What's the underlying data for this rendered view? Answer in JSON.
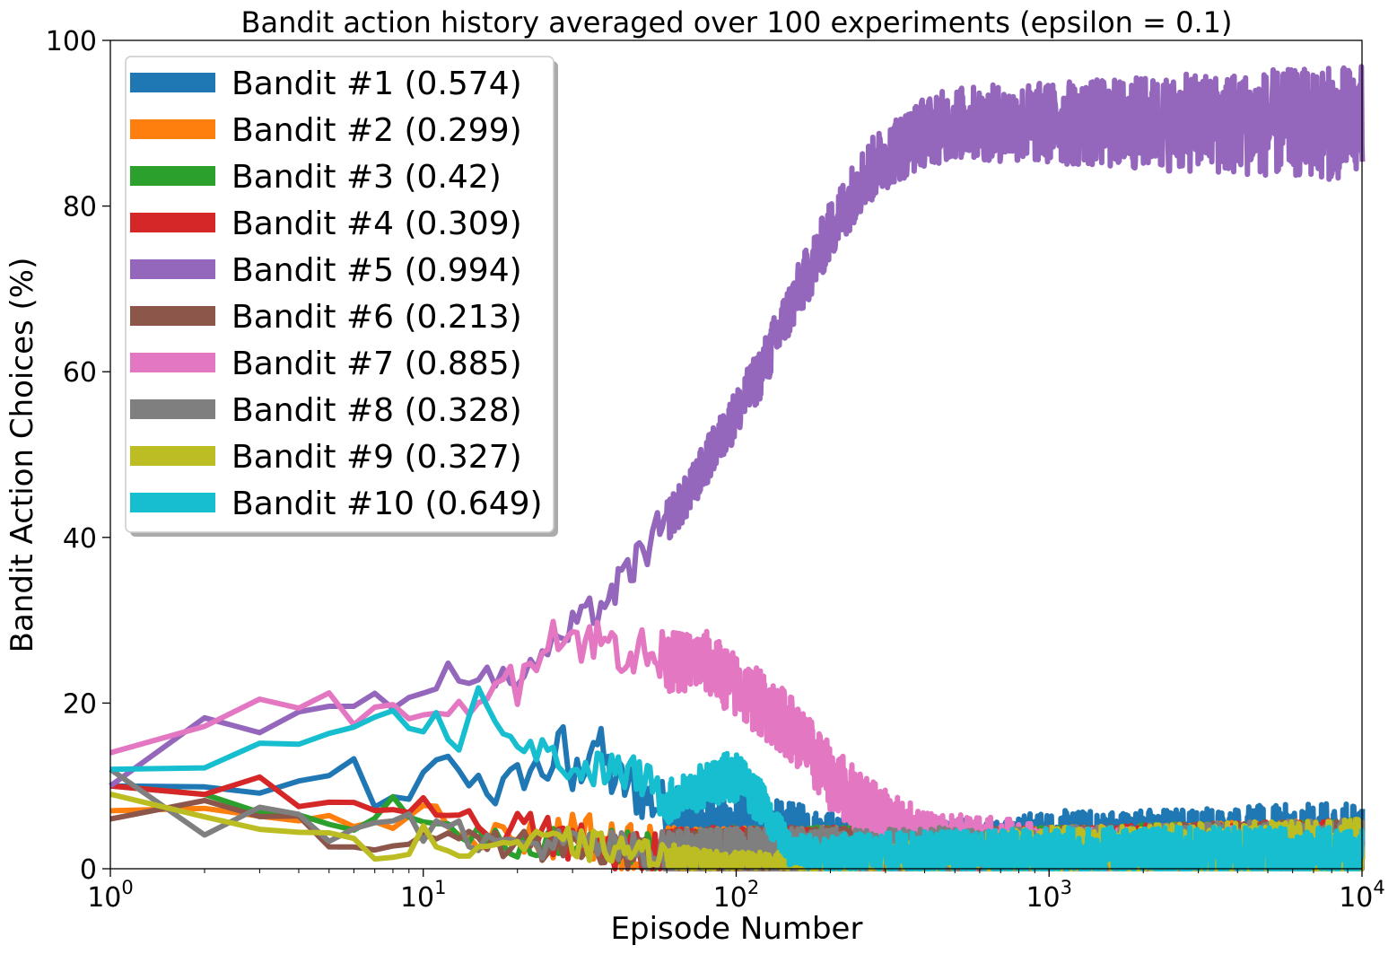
{
  "chart_data": {
    "type": "line",
    "title": "Bandit action history averaged over 100 experiments (epsilon = 0.1)",
    "xlabel": "Episode Number",
    "ylabel": "Bandit Action Choices (%)",
    "xscale": "log",
    "xlim": [
      1,
      10000
    ],
    "ylim": [
      0,
      100
    ],
    "xticks": [
      {
        "value": 1,
        "base": "10",
        "exp": "0"
      },
      {
        "value": 10,
        "base": "10",
        "exp": "1"
      },
      {
        "value": 100,
        "base": "10",
        "exp": "2"
      },
      {
        "value": 1000,
        "base": "10",
        "exp": "3"
      },
      {
        "value": 10000,
        "base": "10",
        "exp": "4"
      }
    ],
    "yticks": [
      "0",
      "20",
      "40",
      "60",
      "80",
      "100"
    ],
    "grid": false,
    "legend_position": "top-left",
    "series": [
      {
        "name": "Bandit #1 (0.574)",
        "color": "#1f77b4",
        "points": [
          [
            1,
            10
          ],
          [
            2,
            10
          ],
          [
            3,
            9
          ],
          [
            4,
            10
          ],
          [
            5,
            11
          ],
          [
            6,
            13
          ],
          [
            7,
            8
          ],
          [
            9,
            8
          ],
          [
            10,
            11
          ],
          [
            12,
            14
          ],
          [
            13,
            11
          ],
          [
            15,
            11
          ],
          [
            17,
            9
          ],
          [
            20,
            11
          ],
          [
            22,
            12
          ],
          [
            25,
            12
          ],
          [
            28,
            15
          ],
          [
            30,
            10
          ],
          [
            35,
            16
          ],
          [
            40,
            11
          ],
          [
            50,
            9
          ],
          [
            60,
            7
          ],
          [
            80,
            5
          ],
          [
            100,
            5
          ],
          [
            150,
            4
          ],
          [
            200,
            3
          ],
          [
            500,
            2
          ],
          [
            1000,
            3
          ],
          [
            3000,
            3
          ],
          [
            10000,
            3
          ]
        ],
        "spread": [
          [
            1,
            0
          ],
          [
            10,
            1
          ],
          [
            30,
            3
          ],
          [
            100,
            4
          ],
          [
            1000,
            4
          ],
          [
            10000,
            5
          ]
        ]
      },
      {
        "name": "Bandit #2 (0.299)",
        "color": "#ff7f0e",
        "points": [
          [
            1,
            7
          ],
          [
            2,
            7
          ],
          [
            3,
            6
          ],
          [
            5,
            6
          ],
          [
            8,
            5
          ],
          [
            10,
            8
          ],
          [
            12,
            6
          ],
          [
            15,
            4
          ],
          [
            20,
            4
          ],
          [
            25,
            3
          ],
          [
            30,
            5
          ],
          [
            40,
            3
          ],
          [
            60,
            2
          ],
          [
            100,
            2
          ],
          [
            200,
            2
          ],
          [
            1000,
            2
          ],
          [
            10000,
            2
          ]
        ],
        "spread": [
          [
            1,
            0
          ],
          [
            10,
            1
          ],
          [
            30,
            3
          ],
          [
            100,
            3
          ],
          [
            1000,
            3
          ],
          [
            10000,
            4
          ]
        ]
      },
      {
        "name": "Bandit #3 (0.42)",
        "color": "#2ca02c",
        "points": [
          [
            1,
            10
          ],
          [
            2,
            9
          ],
          [
            3,
            7
          ],
          [
            4,
            6
          ],
          [
            5,
            6
          ],
          [
            6,
            5
          ],
          [
            8,
            8
          ],
          [
            10,
            6
          ],
          [
            15,
            4
          ],
          [
            20,
            3
          ],
          [
            30,
            3
          ],
          [
            50,
            2
          ],
          [
            100,
            2
          ],
          [
            200,
            2
          ],
          [
            1000,
            2
          ],
          [
            10000,
            2
          ]
        ],
        "spread": [
          [
            1,
            0
          ],
          [
            10,
            1
          ],
          [
            30,
            2
          ],
          [
            100,
            3
          ],
          [
            1000,
            3
          ],
          [
            10000,
            4
          ]
        ]
      },
      {
        "name": "Bandit #4 (0.309)",
        "color": "#d62728",
        "points": [
          [
            1,
            10
          ],
          [
            2,
            9
          ],
          [
            3,
            11
          ],
          [
            4,
            8
          ],
          [
            6,
            8
          ],
          [
            8,
            7
          ],
          [
            10,
            8
          ],
          [
            12,
            7
          ],
          [
            15,
            5
          ],
          [
            20,
            5
          ],
          [
            30,
            3
          ],
          [
            50,
            2
          ],
          [
            100,
            2
          ],
          [
            300,
            2
          ],
          [
            1000,
            2
          ],
          [
            10000,
            2
          ]
        ],
        "spread": [
          [
            1,
            0
          ],
          [
            10,
            1
          ],
          [
            30,
            3
          ],
          [
            100,
            3
          ],
          [
            1000,
            3
          ],
          [
            10000,
            4
          ]
        ]
      },
      {
        "name": "Bandit #5 (0.994)",
        "color": "#9467bd",
        "points": [
          [
            1,
            10
          ],
          [
            2,
            18
          ],
          [
            3,
            16
          ],
          [
            4,
            19
          ],
          [
            5,
            20
          ],
          [
            6,
            19
          ],
          [
            7,
            22
          ],
          [
            8,
            20
          ],
          [
            9,
            21
          ],
          [
            10,
            21
          ],
          [
            12,
            24
          ],
          [
            15,
            23
          ],
          [
            20,
            23
          ],
          [
            30,
            29
          ],
          [
            40,
            33
          ],
          [
            50,
            38
          ],
          [
            60,
            42
          ],
          [
            70,
            45
          ],
          [
            80,
            49
          ],
          [
            100,
            55
          ],
          [
            120,
            60
          ],
          [
            150,
            68
          ],
          [
            200,
            77
          ],
          [
            250,
            83
          ],
          [
            300,
            86
          ],
          [
            400,
            89
          ],
          [
            500,
            90
          ],
          [
            700,
            90
          ],
          [
            1000,
            90
          ],
          [
            2000,
            90
          ],
          [
            5000,
            90
          ],
          [
            10000,
            90
          ]
        ],
        "spread": [
          [
            1,
            0
          ],
          [
            10,
            1
          ],
          [
            30,
            2
          ],
          [
            100,
            3
          ],
          [
            300,
            4
          ],
          [
            1000,
            5
          ],
          [
            3000,
            6
          ],
          [
            10000,
            7
          ]
        ]
      },
      {
        "name": "Bandit #6 (0.213)",
        "color": "#8c564b",
        "points": [
          [
            1,
            6
          ],
          [
            2,
            8
          ],
          [
            3,
            6
          ],
          [
            4,
            6
          ],
          [
            5,
            3
          ],
          [
            7,
            3
          ],
          [
            9,
            3
          ],
          [
            10,
            5
          ],
          [
            15,
            3
          ],
          [
            20,
            3
          ],
          [
            30,
            2
          ],
          [
            50,
            2
          ],
          [
            100,
            2
          ],
          [
            1000,
            2
          ],
          [
            10000,
            2
          ]
        ],
        "spread": [
          [
            1,
            0
          ],
          [
            10,
            1
          ],
          [
            30,
            2
          ],
          [
            100,
            3
          ],
          [
            1000,
            3
          ],
          [
            10000,
            4
          ]
        ]
      },
      {
        "name": "Bandit #7 (0.885)",
        "color": "#e377c2",
        "points": [
          [
            1,
            14
          ],
          [
            2,
            17
          ],
          [
            3,
            20
          ],
          [
            4,
            19
          ],
          [
            5,
            21
          ],
          [
            6,
            18
          ],
          [
            7,
            20
          ],
          [
            8,
            19
          ],
          [
            9,
            19
          ],
          [
            10,
            18
          ],
          [
            12,
            18
          ],
          [
            15,
            21
          ],
          [
            18,
            23
          ],
          [
            20,
            22
          ],
          [
            25,
            29
          ],
          [
            30,
            28
          ],
          [
            40,
            27
          ],
          [
            50,
            26
          ],
          [
            60,
            25
          ],
          [
            80,
            25
          ],
          [
            100,
            22
          ],
          [
            120,
            20
          ],
          [
            150,
            17
          ],
          [
            200,
            11
          ],
          [
            250,
            8
          ],
          [
            300,
            6
          ],
          [
            400,
            3
          ],
          [
            500,
            3
          ],
          [
            700,
            3
          ],
          [
            1000,
            2
          ],
          [
            10000,
            2
          ]
        ],
        "spread": [
          [
            1,
            0
          ],
          [
            10,
            1
          ],
          [
            30,
            3
          ],
          [
            100,
            4
          ],
          [
            300,
            4
          ],
          [
            1000,
            3
          ],
          [
            10000,
            3
          ]
        ]
      },
      {
        "name": "Bandit #8 (0.328)",
        "color": "#7f7f7f",
        "points": [
          [
            1,
            12
          ],
          [
            2,
            4
          ],
          [
            3,
            7
          ],
          [
            4,
            6
          ],
          [
            5,
            4
          ],
          [
            7,
            6
          ],
          [
            9,
            7
          ],
          [
            10,
            4
          ],
          [
            12,
            6
          ],
          [
            15,
            3
          ],
          [
            20,
            3
          ],
          [
            30,
            3
          ],
          [
            50,
            2
          ],
          [
            100,
            2
          ],
          [
            300,
            2
          ],
          [
            1000,
            2
          ],
          [
            10000,
            2
          ]
        ],
        "spread": [
          [
            1,
            0
          ],
          [
            10,
            1
          ],
          [
            30,
            2
          ],
          [
            100,
            3
          ],
          [
            1000,
            3
          ],
          [
            10000,
            4
          ]
        ]
      },
      {
        "name": "Bandit #9 (0.327)",
        "color": "#bcbd22",
        "points": [
          [
            1,
            9
          ],
          [
            2,
            6
          ],
          [
            3,
            5
          ],
          [
            4,
            5
          ],
          [
            5,
            4
          ],
          [
            6,
            3
          ],
          [
            7,
            2
          ],
          [
            9,
            2
          ],
          [
            10,
            5
          ],
          [
            12,
            1
          ],
          [
            15,
            3
          ],
          [
            20,
            3
          ],
          [
            30,
            3
          ],
          [
            50,
            2
          ],
          [
            80,
            1
          ],
          [
            100,
            1
          ],
          [
            150,
            1
          ],
          [
            200,
            0.5
          ],
          [
            500,
            2
          ],
          [
            1000,
            2
          ],
          [
            10000,
            2
          ]
        ],
        "spread": [
          [
            1,
            0
          ],
          [
            10,
            1
          ],
          [
            30,
            2
          ],
          [
            100,
            1
          ],
          [
            200,
            1
          ],
          [
            1000,
            3
          ],
          [
            10000,
            4
          ]
        ]
      },
      {
        "name": "Bandit #10 (0.649)",
        "color": "#17becf",
        "points": [
          [
            1,
            12
          ],
          [
            2,
            12
          ],
          [
            3,
            15
          ],
          [
            4,
            15
          ],
          [
            5,
            17
          ],
          [
            6,
            17
          ],
          [
            8,
            19
          ],
          [
            9,
            17
          ],
          [
            10,
            16
          ],
          [
            11,
            18
          ],
          [
            13,
            15
          ],
          [
            15,
            23
          ],
          [
            18,
            16
          ],
          [
            20,
            16
          ],
          [
            25,
            14
          ],
          [
            30,
            12
          ],
          [
            40,
            12
          ],
          [
            50,
            11
          ],
          [
            60,
            8
          ],
          [
            70,
            9
          ],
          [
            80,
            10
          ],
          [
            90,
            11
          ],
          [
            100,
            11
          ],
          [
            120,
            8
          ],
          [
            150,
            2
          ],
          [
            200,
            2
          ],
          [
            500,
            2
          ],
          [
            1000,
            2
          ],
          [
            3000,
            2
          ],
          [
            10000,
            2
          ]
        ],
        "spread": [
          [
            1,
            0
          ],
          [
            10,
            1
          ],
          [
            30,
            2
          ],
          [
            100,
            3
          ],
          [
            150,
            2
          ],
          [
            1000,
            3
          ],
          [
            10000,
            3
          ]
        ]
      }
    ]
  }
}
